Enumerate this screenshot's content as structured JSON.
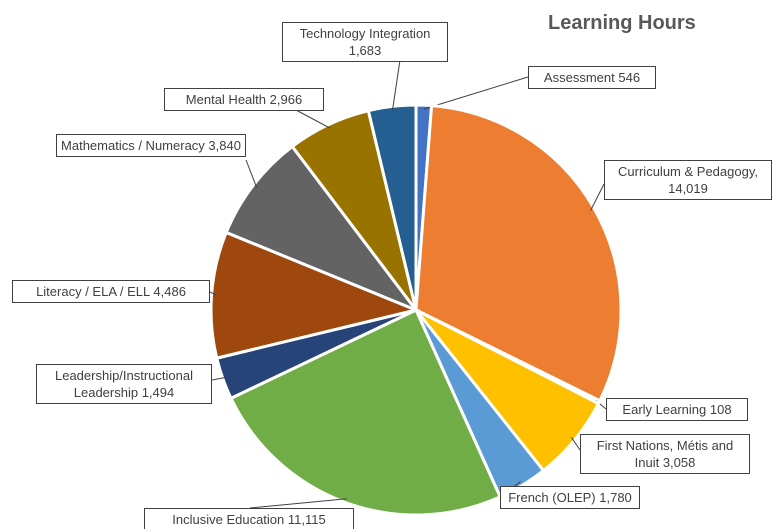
{
  "chart_data": {
    "type": "pie",
    "title": "Learning Hours",
    "categories": [
      "Assessment",
      "Curriculum & Pedagogy,",
      "Early Learning",
      "First Nations, Métis and Inuit",
      "French (OLEP)",
      "Inclusive Education",
      "Leadership/Instructional Leadership",
      "Literacy / ELA / ELL",
      "Mathematics / Numeracy",
      "Mental Health",
      "Technology Integration"
    ],
    "values": [
      546,
      14019,
      108,
      3058,
      1780,
      11115,
      1494,
      4486,
      3840,
      2966,
      1683
    ],
    "value_labels": [
      "546",
      "14,019",
      "108",
      "3,058",
      "1,780",
      "11,115",
      "1,494",
      "4,486",
      "3,840",
      "2,966",
      "1,683"
    ],
    "colors": [
      "#4472c4",
      "#ed7d31",
      "#a5a5a5",
      "#ffc000",
      "#5b9bd5",
      "#70ad47",
      "#264478",
      "#9e480e",
      "#636363",
      "#997300",
      "#255e91"
    ]
  }
}
